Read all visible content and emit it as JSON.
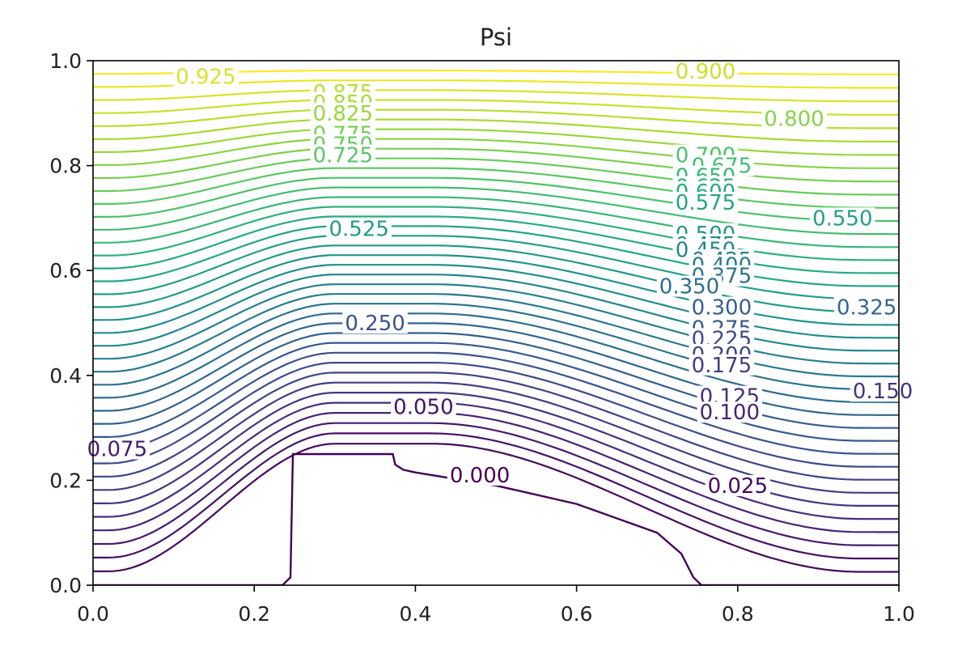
{
  "chart_data": {
    "type": "contour",
    "title": "Psi",
    "xlabel": "",
    "ylabel": "",
    "xlim": [
      0.0,
      1.0
    ],
    "ylim": [
      0.0,
      1.0
    ],
    "x_ticks": [
      "0.0",
      "0.2",
      "0.4",
      "0.6",
      "0.8",
      "1.0"
    ],
    "y_ticks": [
      "0.0",
      "0.2",
      "0.4",
      "0.6",
      "0.8",
      "1.0"
    ],
    "colormap": "viridis",
    "grid": false,
    "legend": "none",
    "level_step": 0.025,
    "level_min": 0.0,
    "level_max": 0.975,
    "obstacle": {
      "x": [
        0.0,
        0.235,
        0.245,
        0.248,
        0.25,
        0.372,
        0.375,
        0.385,
        0.4,
        0.5,
        0.6,
        0.7,
        0.73,
        0.745,
        0.755,
        1.0
      ],
      "y": [
        0.0,
        0.0,
        0.015,
        0.25,
        0.25,
        0.25,
        0.23,
        0.22,
        0.215,
        0.19,
        0.155,
        0.1,
        0.06,
        0.015,
        0.0,
        0.0
      ]
    },
    "contour_labels": [
      {
        "text": "0.925",
        "x": 0.14,
        "y": 0.97
      },
      {
        "text": "0.900",
        "x": 0.76,
        "y": 0.98
      },
      {
        "text": "0.875",
        "x": 0.31,
        "y": 0.94
      },
      {
        "text": "0.850",
        "x": 0.31,
        "y": 0.92
      },
      {
        "text": "0.825",
        "x": 0.31,
        "y": 0.9
      },
      {
        "text": "0.800",
        "x": 0.87,
        "y": 0.89
      },
      {
        "text": "0.775",
        "x": 0.31,
        "y": 0.86
      },
      {
        "text": "0.750",
        "x": 0.31,
        "y": 0.84
      },
      {
        "text": "0.725",
        "x": 0.31,
        "y": 0.82
      },
      {
        "text": "0.700",
        "x": 0.76,
        "y": 0.82
      },
      {
        "text": "0.675",
        "x": 0.78,
        "y": 0.8
      },
      {
        "text": "0.650",
        "x": 0.76,
        "y": 0.78
      },
      {
        "text": "0.625",
        "x": 0.76,
        "y": 0.76
      },
      {
        "text": "0.600",
        "x": 0.76,
        "y": 0.75
      },
      {
        "text": "0.575",
        "x": 0.76,
        "y": 0.73
      },
      {
        "text": "0.550",
        "x": 0.93,
        "y": 0.7
      },
      {
        "text": "0.525",
        "x": 0.33,
        "y": 0.68
      },
      {
        "text": "0.500",
        "x": 0.76,
        "y": 0.67
      },
      {
        "text": "0.475",
        "x": 0.76,
        "y": 0.65
      },
      {
        "text": "0.450",
        "x": 0.76,
        "y": 0.64
      },
      {
        "text": "0.425",
        "x": 0.78,
        "y": 0.62
      },
      {
        "text": "0.400",
        "x": 0.78,
        "y": 0.61
      },
      {
        "text": "0.375",
        "x": 0.78,
        "y": 0.59
      },
      {
        "text": "0.350",
        "x": 0.74,
        "y": 0.57
      },
      {
        "text": "0.325",
        "x": 0.96,
        "y": 0.53
      },
      {
        "text": "0.300",
        "x": 0.78,
        "y": 0.53
      },
      {
        "text": "0.275",
        "x": 0.78,
        "y": 0.49
      },
      {
        "text": "0.250",
        "x": 0.35,
        "y": 0.5
      },
      {
        "text": "0.225",
        "x": 0.78,
        "y": 0.47
      },
      {
        "text": "0.200",
        "x": 0.78,
        "y": 0.44
      },
      {
        "text": "0.175",
        "x": 0.78,
        "y": 0.42
      },
      {
        "text": "0.150",
        "x": 0.98,
        "y": 0.37
      },
      {
        "text": "0.125",
        "x": 0.79,
        "y": 0.36
      },
      {
        "text": "0.100",
        "x": 0.79,
        "y": 0.33
      },
      {
        "text": "0.075",
        "x": 0.03,
        "y": 0.26
      },
      {
        "text": "0.050",
        "x": 0.41,
        "y": 0.34
      },
      {
        "text": "0.025",
        "x": 0.8,
        "y": 0.19
      },
      {
        "text": "0.000",
        "x": 0.48,
        "y": 0.21
      }
    ]
  }
}
